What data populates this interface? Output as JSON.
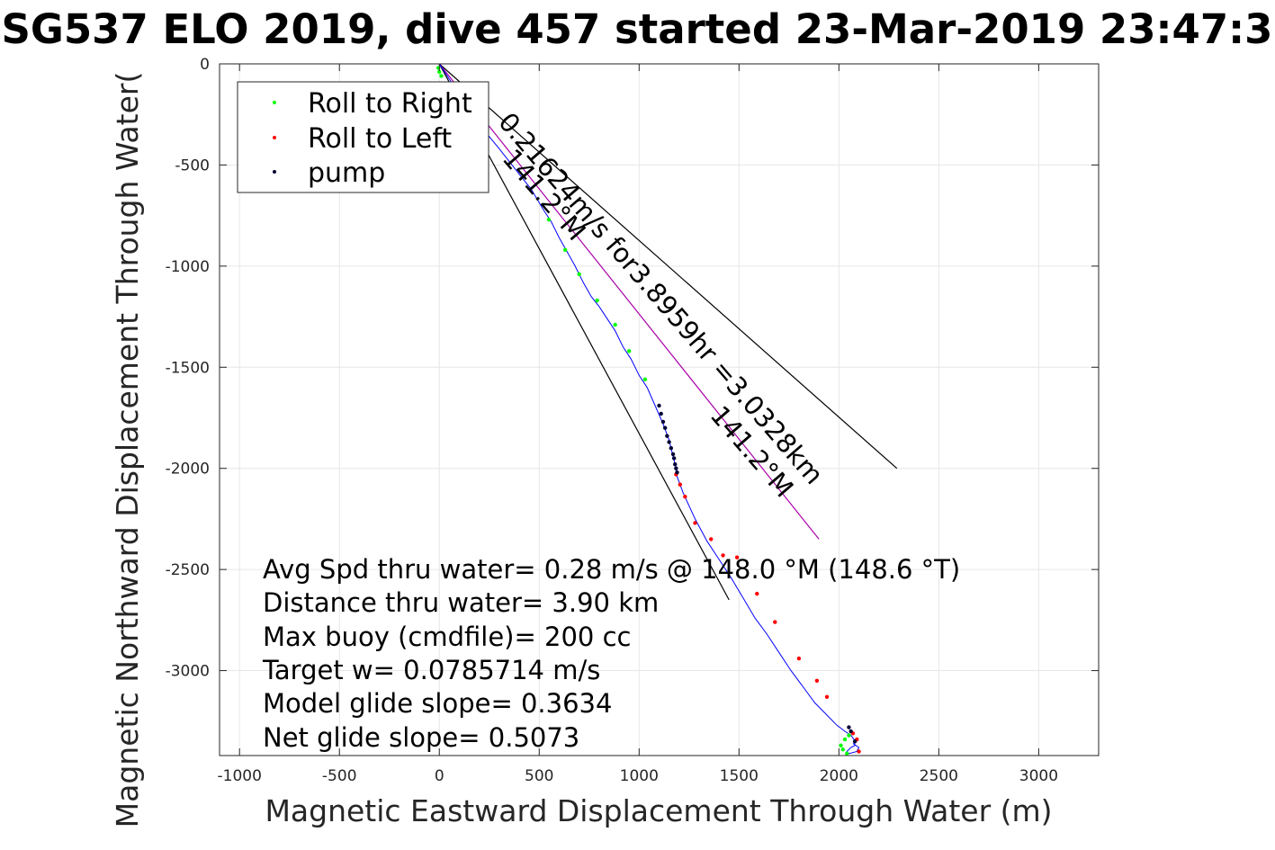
{
  "chart_data": {
    "type": "scatter",
    "title": "SG537 ELO 2019, dive 457 started 23-Mar-2019 23:47:3",
    "xlabel": "Magnetic Eastward Displacement Through Water (m)",
    "ylabel": "Magnetic Northward Displacement Through Water(",
    "xlim": [
      -1100,
      3300
    ],
    "ylim": [
      -3420,
      0
    ],
    "xticks": [
      -1000,
      -500,
      0,
      500,
      1000,
      1500,
      2000,
      2500,
      3000
    ],
    "yticks": [
      0,
      -500,
      -1000,
      -1500,
      -2000,
      -2500,
      -3000
    ],
    "grid": true,
    "legend": {
      "placement": "top-left",
      "entries": [
        {
          "name": "Roll to Right",
          "color": "#00ff00"
        },
        {
          "name": "Roll to Left",
          "color": "#ff0000"
        },
        {
          "name": "pump",
          "color": "#000033"
        }
      ]
    },
    "track": {
      "color": "#0000ff",
      "x": [
        0,
        40,
        120,
        200,
        300,
        380,
        460,
        520,
        560,
        600,
        640,
        680,
        720,
        760,
        800,
        840,
        880,
        920,
        960,
        1000,
        1040,
        1080,
        1120,
        1150,
        1170,
        1185,
        1190,
        1220,
        1280,
        1340,
        1400,
        1460,
        1520,
        1580,
        1640,
        1700,
        1760,
        1820,
        1880,
        1940,
        1990,
        2030,
        2060,
        2075,
        2080,
        2060,
        2040,
        2050,
        2090,
        2100,
        2070
      ],
      "y": [
        0,
        -60,
        -180,
        -300,
        -420,
        -520,
        -620,
        -720,
        -780,
        -860,
        -930,
        -1000,
        -1080,
        -1150,
        -1200,
        -1260,
        -1320,
        -1400,
        -1460,
        -1540,
        -1600,
        -1690,
        -1780,
        -1860,
        -1940,
        -2000,
        -2040,
        -2120,
        -2250,
        -2360,
        -2450,
        -2540,
        -2640,
        -2740,
        -2820,
        -2910,
        -3000,
        -3080,
        -3160,
        -3220,
        -3270,
        -3300,
        -3320,
        -3340,
        -3370,
        -3380,
        -3400,
        -3410,
        -3400,
        -3380,
        -3360
      ]
    },
    "series": [
      {
        "name": "Roll to Right",
        "color": "#00ff00",
        "x": [
          -5,
          0,
          10,
          548,
          630,
          700,
          790,
          880,
          950,
          1030,
          2010,
          2030,
          2050,
          2040,
          2020
        ],
        "y": [
          -20,
          -40,
          -60,
          -770,
          -920,
          -1040,
          -1170,
          -1290,
          -1420,
          -1560,
          -3370,
          -3340,
          -3320,
          -3410,
          -3390
        ]
      },
      {
        "name": "Roll to Left",
        "color": "#ff0000",
        "x": [
          1185,
          1205,
          1230,
          1280,
          1360,
          1420,
          1490,
          1590,
          1680,
          1800,
          1890,
          1940,
          2070,
          2090,
          2100
        ],
        "y": [
          -2030,
          -2080,
          -2140,
          -2270,
          -2350,
          -2430,
          -2440,
          -2620,
          -2760,
          -2940,
          -3050,
          -3130,
          -3310,
          -3340,
          -3400
        ]
      },
      {
        "name": "pump",
        "color": "#000033",
        "x": [
          1100,
          1110,
          1120,
          1130,
          1140,
          1150,
          1160,
          1170,
          1175,
          1180,
          1185,
          1190,
          2050,
          2060,
          2080
        ],
        "y": [
          -1690,
          -1730,
          -1770,
          -1800,
          -1840,
          -1870,
          -1900,
          -1930,
          -1950,
          -1980,
          -2000,
          -2020,
          -3280,
          -3300,
          -3350
        ]
      }
    ],
    "lines": [
      {
        "color": "#000000",
        "x": [
          0,
          2290
        ],
        "y": [
          0,
          -2000
        ]
      },
      {
        "color": "#000000",
        "x": [
          0,
          1450
        ],
        "y": [
          0,
          -2650
        ]
      },
      {
        "color": "#aa00aa",
        "x": [
          0,
          1900
        ],
        "y": [
          0,
          -2350
        ]
      }
    ],
    "rotated_labels": [
      {
        "text": "0.21624m/s for3.8959hr =3.0328km",
        "x": 290,
        "y": -290,
        "angle": 49.2
      },
      {
        "text": "141.2°M",
        "x": 1350,
        "y": -1740,
        "angle": 49.2
      },
      {
        "text": "141.2°M",
        "x": 310,
        "y": -470,
        "angle": 49.2
      }
    ],
    "annotations": [
      "Avg Spd thru water=  0.28 m/s @ 148.0 °M (148.6 °T)",
      "Distance thru water=  3.90 km",
      "Max buoy (cmdfile)= 200 cc",
      "Target w= 0.0785714 m/s",
      "Model glide slope= 0.3634",
      "Net glide slope= 0.5073"
    ]
  }
}
